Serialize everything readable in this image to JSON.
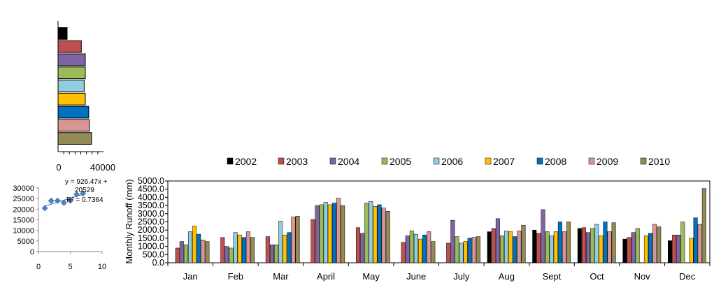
{
  "chart_data": [
    {
      "type": "bar",
      "orientation": "horizontal",
      "values": [
        8000,
        20500,
        24000,
        24000,
        23000,
        24000,
        27000,
        27500,
        29500
      ],
      "colors": [
        "#000000",
        "#C0504D",
        "#8064A2",
        "#9BBB59",
        "#93CDDD",
        "#FFC000",
        "#0070C0",
        "#D99694",
        "#948A54"
      ],
      "xtick_labels": [
        "0",
        "40000"
      ],
      "xlim": [
        0,
        40000
      ]
    },
    {
      "type": "scatter",
      "points": [
        [
          1,
          20500
        ],
        [
          2,
          24000
        ],
        [
          3,
          24000
        ],
        [
          4,
          23000
        ],
        [
          5,
          24000
        ],
        [
          6,
          27000
        ],
        [
          7,
          27500
        ]
      ],
      "trendline": {
        "slope": 926.47,
        "intercept": 20529
      },
      "equation_lines": [
        "y = 926.47x +",
        "20529"
      ],
      "r2_label": "R² = 0.7364",
      "xlim": [
        0,
        10
      ],
      "ylim": [
        0,
        30000
      ],
      "xtick_labels": [
        "0",
        "5",
        "10"
      ],
      "ytick_labels": [
        "0",
        "5000",
        "10000",
        "15000",
        "20000",
        "25000",
        "30000"
      ],
      "color": "#4F81BD"
    },
    {
      "type": "bar",
      "ylabel": "Monthly Runoff (mm)",
      "ylim": [
        0,
        5000
      ],
      "ytick_labels": [
        "0.0",
        "500.0",
        "1000.0",
        "1500.0",
        "2000.0",
        "2500.0",
        "3000.0",
        "3500.0",
        "4000.0",
        "4500.0",
        "5000.0"
      ],
      "categories": [
        "Jan",
        "Feb",
        "Mar",
        "April",
        "May",
        "June",
        "July",
        "Aug",
        "Sept",
        "Oct",
        "Nov",
        "Dec"
      ],
      "series": [
        {
          "name": "2002",
          "color": "#000000",
          "values": [
            0,
            0,
            0,
            0,
            0,
            0,
            0,
            1900,
            2000,
            2100,
            1450,
            1350
          ]
        },
        {
          "name": "2003",
          "color": "#C0504D",
          "values": [
            900,
            1550,
            1600,
            2650,
            2150,
            1250,
            1200,
            2100,
            1800,
            2150,
            1550,
            1700
          ]
        },
        {
          "name": "2004",
          "color": "#8064A2",
          "values": [
            1300,
            1000,
            1100,
            3500,
            1800,
            1650,
            2600,
            2700,
            3250,
            1850,
            1850,
            1700
          ]
        },
        {
          "name": "2005",
          "color": "#9BBB59",
          "values": [
            1100,
            900,
            1100,
            3550,
            3650,
            1950,
            1600,
            1650,
            1900,
            2100,
            2100,
            2500
          ]
        },
        {
          "name": "2006",
          "color": "#93CDDD",
          "values": [
            1900,
            1850,
            2550,
            3700,
            3750,
            1750,
            1200,
            1950,
            1650,
            2350,
            0,
            0
          ]
        },
        {
          "name": "2007",
          "color": "#FFC000",
          "values": [
            2250,
            1700,
            1700,
            3550,
            3450,
            1450,
            1300,
            1900,
            1900,
            1650,
            1650,
            1500
          ]
        },
        {
          "name": "2008",
          "color": "#0070C0",
          "values": [
            1750,
            1550,
            1850,
            3650,
            3550,
            1700,
            1500,
            1600,
            2500,
            2500,
            1800,
            2750
          ]
        },
        {
          "name": "2009",
          "color": "#D99694",
          "values": [
            1400,
            1900,
            2800,
            3950,
            3350,
            1900,
            1550,
            1950,
            1900,
            1900,
            2350,
            2350
          ]
        },
        {
          "name": "2010",
          "color": "#948A54",
          "values": [
            1300,
            1550,
            2850,
            3500,
            3150,
            1300,
            1600,
            2300,
            2500,
            2450,
            2200,
            4550
          ]
        }
      ]
    }
  ]
}
